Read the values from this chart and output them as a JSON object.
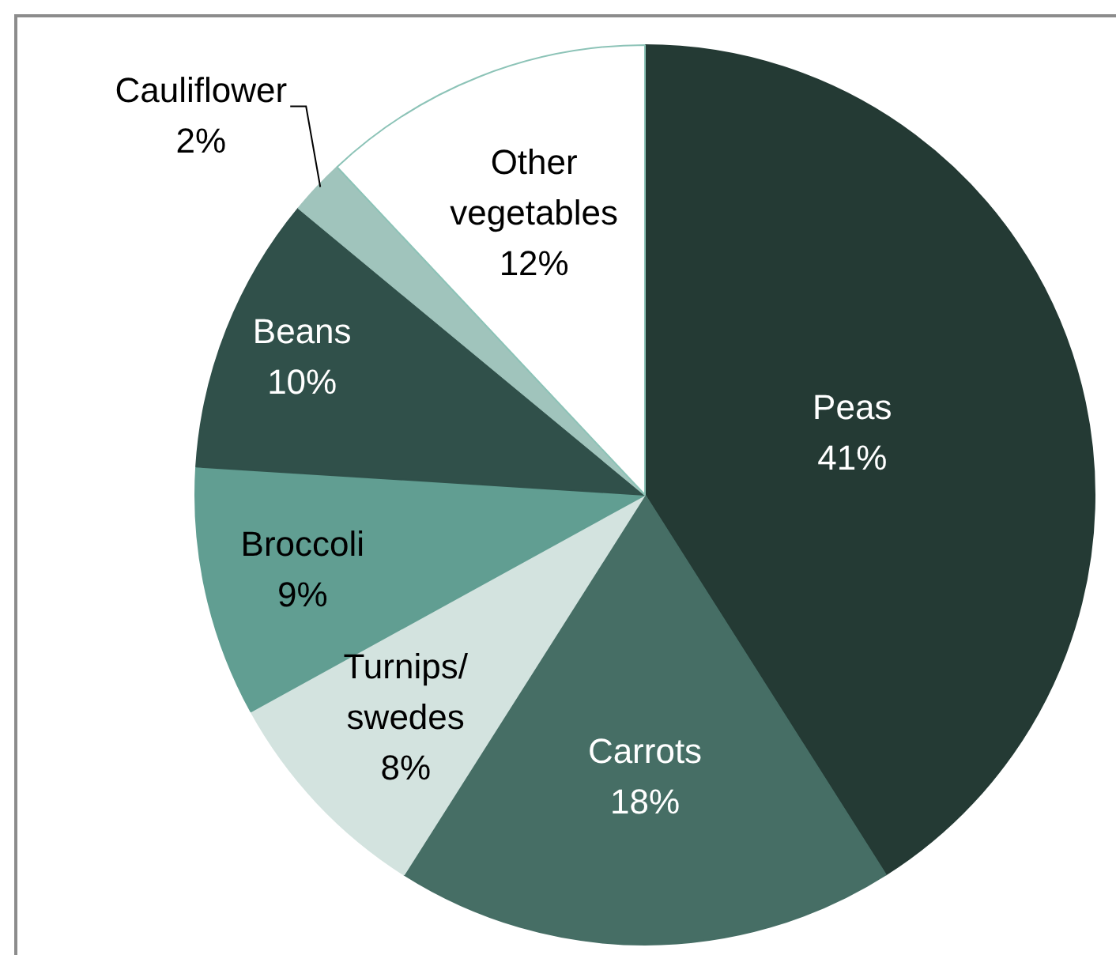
{
  "chart_data": {
    "type": "pie",
    "categories": [
      "Peas",
      "Carrots",
      "Turnips/swedes",
      "Broccoli",
      "Beans",
      "Cauliflower",
      "Other vegetables"
    ],
    "values": [
      41,
      18,
      8,
      9,
      10,
      2,
      12
    ],
    "colors": [
      "#243a34",
      "#466e65",
      "#d3e3df",
      "#619e92",
      "#30504a",
      "#a0c4bc",
      "#ffffff"
    ],
    "value_labels": [
      "41%",
      "18%",
      "8%",
      "9%",
      "10%",
      "2%",
      "12%"
    ],
    "legend": false
  }
}
